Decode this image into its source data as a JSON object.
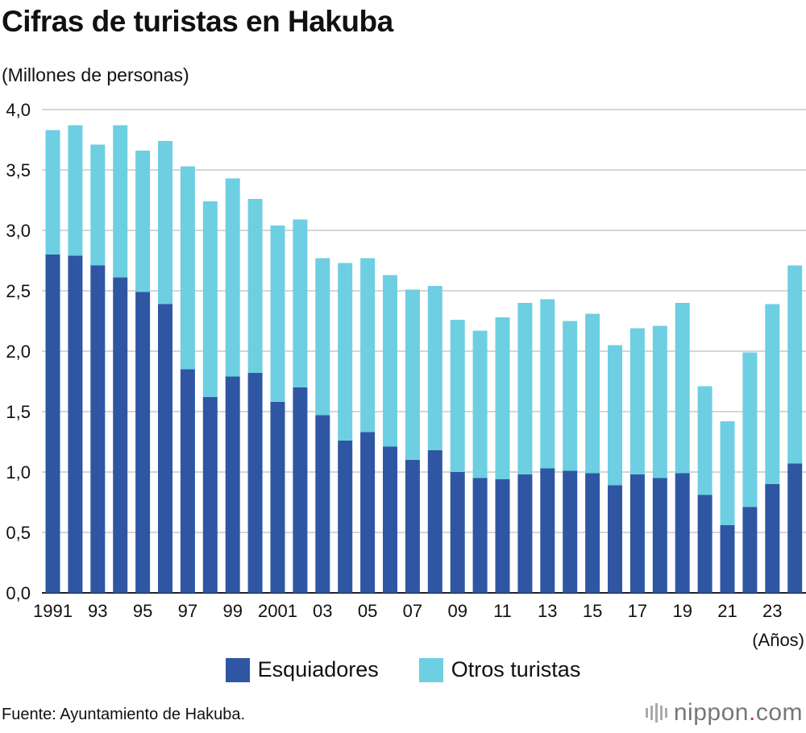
{
  "chart_data": {
    "type": "bar",
    "stacked": true,
    "title": "Cifras de turistas en Hakuba",
    "ylabel": "(Millones de personas)",
    "xlabel": "(Años)",
    "ylim": [
      0,
      4.0
    ],
    "yticks": [
      "0,0",
      "0,5",
      "1,0",
      "1,5",
      "2,0",
      "2,5",
      "3,0",
      "3,5",
      "4,0"
    ],
    "grid": true,
    "legend_position": "bottom",
    "categories": [
      1991,
      1992,
      1993,
      1994,
      1995,
      1996,
      1997,
      1998,
      1999,
      2000,
      2001,
      2002,
      2003,
      2004,
      2005,
      2006,
      2007,
      2008,
      2009,
      2010,
      2011,
      2012,
      2013,
      2014,
      2015,
      2016,
      2017,
      2018,
      2019,
      2020,
      2021,
      2022,
      2023,
      2024
    ],
    "xtick_labels": {
      "1991": "1991",
      "1993": "93",
      "1995": "95",
      "1997": "97",
      "1999": "99",
      "2001": "2001",
      "2003": "03",
      "2005": "05",
      "2007": "07",
      "2009": "09",
      "2011": "11",
      "2013": "13",
      "2015": "15",
      "2017": "17",
      "2019": "19",
      "2021": "21",
      "2023": "23"
    },
    "series": [
      {
        "name": "Esquiadores",
        "color": "#2f56a3",
        "values": [
          2.8,
          2.79,
          2.71,
          2.61,
          2.49,
          2.39,
          1.85,
          1.62,
          1.79,
          1.82,
          1.58,
          1.7,
          1.47,
          1.26,
          1.33,
          1.21,
          1.1,
          1.18,
          1.0,
          0.95,
          0.94,
          0.98,
          1.03,
          1.01,
          0.99,
          0.89,
          0.98,
          0.95,
          0.99,
          0.81,
          0.56,
          0.71,
          0.9,
          1.07
        ]
      },
      {
        "name": "Otros turistas",
        "color": "#6dcfe1",
        "values": [
          1.03,
          1.08,
          1.0,
          1.26,
          1.17,
          1.35,
          1.68,
          1.62,
          1.64,
          1.44,
          1.46,
          1.39,
          1.3,
          1.47,
          1.44,
          1.42,
          1.41,
          1.36,
          1.26,
          1.22,
          1.34,
          1.42,
          1.4,
          1.24,
          1.32,
          1.16,
          1.21,
          1.26,
          1.41,
          0.9,
          0.86,
          1.28,
          1.49,
          1.64
        ]
      }
    ]
  },
  "footer": {
    "source": "Fuente: Ayuntamiento de Hakuba.",
    "logo": "nippon.com"
  }
}
